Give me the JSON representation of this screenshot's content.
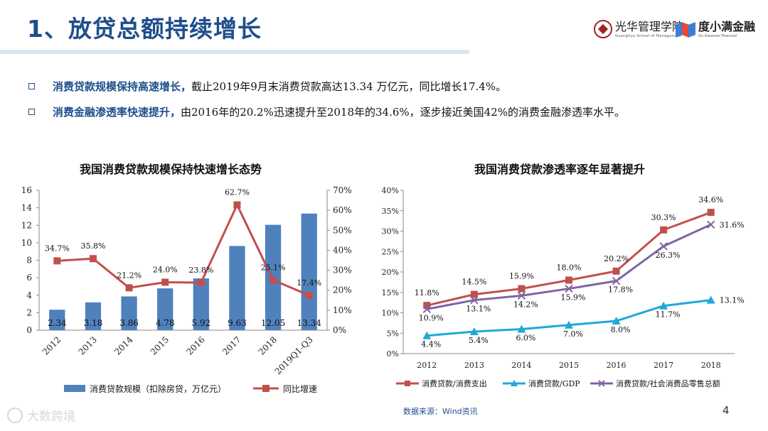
{
  "page": {
    "title": "1、放贷总额持续增长",
    "logo_left": {
      "name": "光华管理学院",
      "sub": "Guanghua School of Management"
    },
    "logo_right": {
      "name": "度小满金融",
      "sub": "Du Xiaoman Financial"
    },
    "bullets": [
      {
        "highlight": "消费贷款规模保持高速增长，",
        "text": "截止2019年9月末消费贷款高达13.34 万亿元，同比增长17.4%。"
      },
      {
        "highlight": "消费金融渗透率快速提升，",
        "text": "由2016年的20.2%迅速提升至2018年的34.6%，逐步接近美国42%的消费金融渗透率水平。"
      }
    ],
    "source": "数据来源：Wind资讯",
    "page_number": "4",
    "watermark": "大数跨境"
  },
  "colors": {
    "title_blue": "#1f4e8c",
    "bar_blue": "#4f81bd",
    "line_red": "#c0504d",
    "line_cyan": "#1fa8d8",
    "line_purple": "#8064a2"
  },
  "chart_data": [
    {
      "type": "bar",
      "title": "我国消费贷款规模保持快速增长态势",
      "categories": [
        "2012",
        "2013",
        "2014",
        "2015",
        "2016",
        "2017",
        "2018",
        "2019Q1-Q3"
      ],
      "series": [
        {
          "name": "消费贷款规模（扣除房贷，万亿元）",
          "type": "bar",
          "axis": "left",
          "values": [
            2.34,
            3.18,
            3.86,
            4.78,
            5.92,
            9.63,
            12.05,
            13.34
          ],
          "labels": [
            "2.34",
            "3.18",
            "3.86",
            "4.78",
            "5.92",
            "9.63",
            "12.05",
            "13.34"
          ]
        },
        {
          "name": "同比增速",
          "type": "line",
          "axis": "right",
          "values": [
            34.7,
            35.8,
            21.2,
            24.0,
            23.8,
            62.7,
            25.1,
            17.4
          ],
          "labels": [
            "34.7%",
            "35.8%",
            "21.2%",
            "24.0%",
            "23.8%",
            "62.7%",
            "25.1%",
            "17.4%"
          ]
        }
      ],
      "y_left": {
        "min": 0,
        "max": 16,
        "ticks": [
          "0",
          "2",
          "4",
          "6",
          "8",
          "10",
          "12",
          "14",
          "16"
        ]
      },
      "y_right": {
        "min": 0,
        "max": 70,
        "ticks": [
          "0%",
          "10%",
          "20%",
          "30%",
          "40%",
          "50%",
          "60%",
          "70%"
        ]
      },
      "legend": "bottom",
      "grid": false
    },
    {
      "type": "line",
      "title": "我国消费贷款渗透率逐年显著提升",
      "categories": [
        "2012",
        "2013",
        "2014",
        "2015",
        "2016",
        "2017",
        "2018"
      ],
      "series": [
        {
          "name": "消费贷款/消费支出",
          "marker": "square",
          "values": [
            11.8,
            14.5,
            15.9,
            18.0,
            20.2,
            30.3,
            34.6
          ],
          "labels": [
            "11.8%",
            "14.5%",
            "15.9%",
            "18.0%",
            "20.2%",
            "30.3%",
            "34.6%"
          ]
        },
        {
          "name": "消费贷款/GDP",
          "marker": "triangle",
          "values": [
            4.4,
            5.4,
            6.0,
            7.0,
            8.0,
            11.7,
            13.1
          ],
          "labels": [
            "4.4%",
            "5.4%",
            "6.0%",
            "7.0%",
            "8.0%",
            "11.7%",
            "13.1%"
          ]
        },
        {
          "name": "消费贷款/社会消费品零售总额",
          "marker": "x",
          "values": [
            10.9,
            13.1,
            14.2,
            15.9,
            17.8,
            26.3,
            31.6
          ],
          "labels": [
            "10.9%",
            "13.1%",
            "14.2%",
            "15.9%",
            "17.8%",
            "26.3%",
            "31.6%"
          ]
        }
      ],
      "y": {
        "min": 0,
        "max": 40,
        "ticks": [
          "0%",
          "5%",
          "10%",
          "15%",
          "20%",
          "25%",
          "30%",
          "35%",
          "40%"
        ]
      },
      "legend": "bottom",
      "grid": false
    }
  ]
}
